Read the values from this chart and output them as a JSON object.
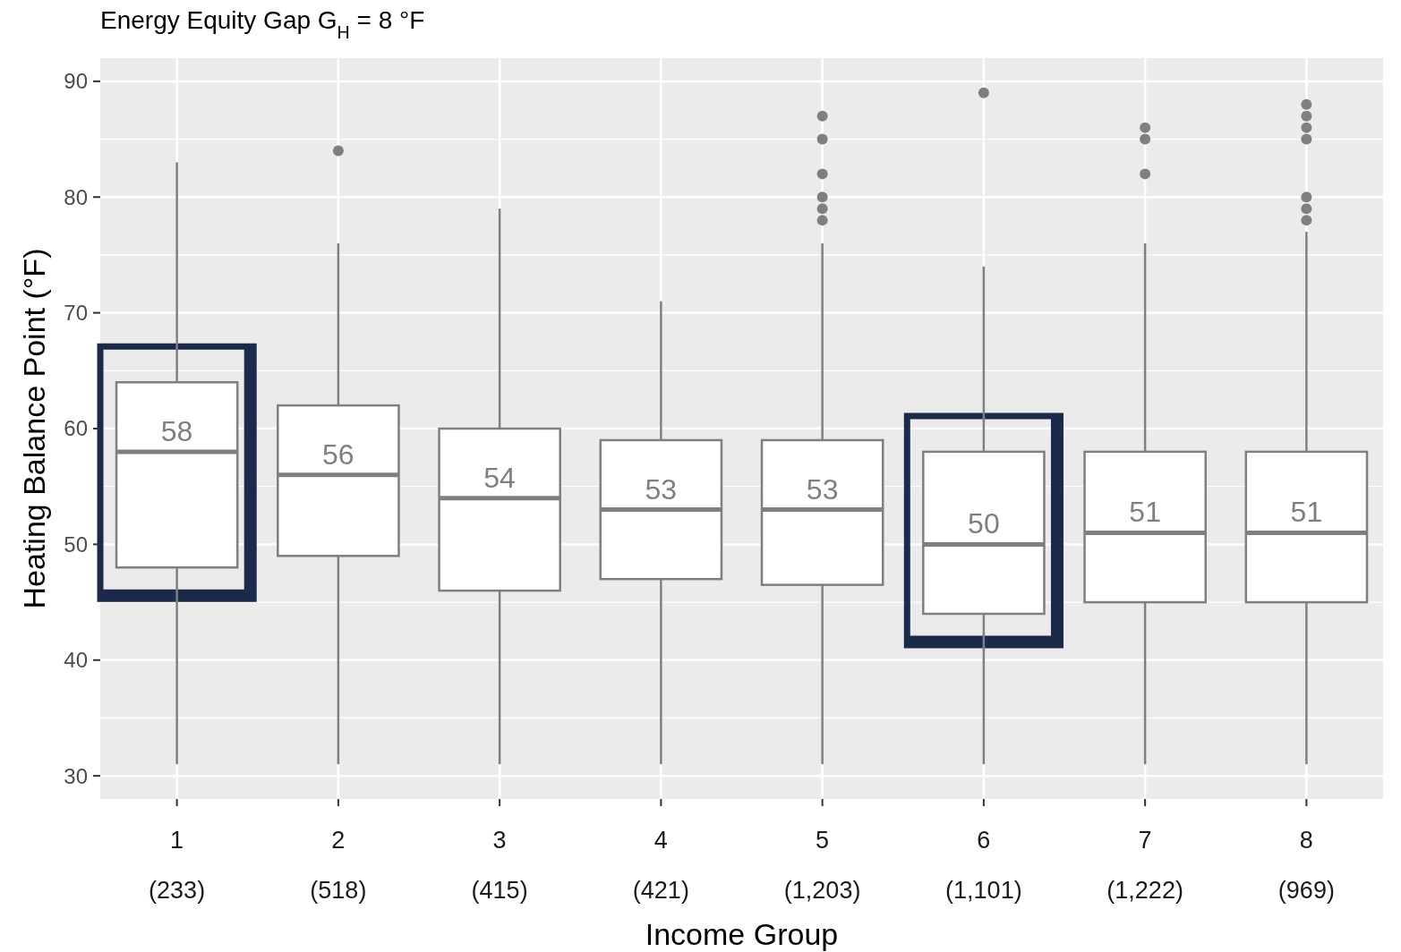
{
  "chart_data": {
    "type": "box",
    "title": "Energy Equity Gap G$_{H}$ = 8 °F",
    "xlabel": "Income Group",
    "ylabel": "Heating Balance Point (°F)",
    "categories": [
      "1\n(233)",
      "2\n(518)",
      "3\n(415)",
      "4\n(421)",
      "5\n(1,203)",
      "6\n(1,101)",
      "7\n(1,222)",
      "8\n(969)"
    ],
    "ylim": [
      28,
      92
    ],
    "yticks": [
      30,
      40,
      50,
      60,
      70,
      80,
      90
    ],
    "grid": true,
    "series": [
      {
        "color": "#7f7f7f",
        "value_labels": [
          "58",
          "56",
          "54",
          "53",
          "53",
          "50",
          "51",
          "51"
        ],
        "boxes": [
          {
            "low": 31,
            "q1": 48,
            "median": 58,
            "q3": 64,
            "high": 83
          },
          {
            "low": 31,
            "q1": 49,
            "median": 56,
            "q3": 62,
            "high": 76,
            "outliers": [
              84
            ]
          },
          {
            "low": 31,
            "q1": 46,
            "median": 54,
            "q3": 60,
            "high": 79
          },
          {
            "low": 31,
            "q1": 47,
            "median": 53,
            "q3": 59,
            "high": 71
          },
          {
            "low": 31,
            "q1": 46.5,
            "median": 53,
            "q3": 59,
            "high": 76,
            "outliers": [
              87,
              85,
              82,
              80,
              79,
              78
            ]
          },
          {
            "low": 31,
            "q1": 44,
            "median": 50,
            "q3": 58,
            "high": 74,
            "outliers": [
              89
            ]
          },
          {
            "low": 31,
            "q1": 45,
            "median": 51,
            "q3": 58,
            "high": 76,
            "outliers": [
              86,
              85,
              82
            ]
          },
          {
            "low": 31,
            "q1": 45,
            "median": 51,
            "q3": 58,
            "high": 77,
            "outliers": [
              88,
              87,
              86,
              85,
              80,
              79,
              78
            ]
          }
        ]
      }
    ],
    "bands": [
      {
        "axis": "x",
        "from": "1\n(233)",
        "to": "1\n(233)",
        "color": "#1b2a4a"
      },
      {
        "axis": "x",
        "from": "6\n(1,101)",
        "to": "6\n(1,101)",
        "color": "#1b2a4a"
      }
    ]
  }
}
